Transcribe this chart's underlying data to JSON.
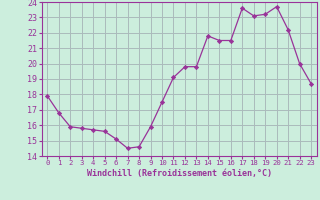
{
  "x": [
    0,
    1,
    2,
    3,
    4,
    5,
    6,
    7,
    8,
    9,
    10,
    11,
    12,
    13,
    14,
    15,
    16,
    17,
    18,
    19,
    20,
    21,
    22,
    23
  ],
  "y": [
    17.9,
    16.8,
    15.9,
    15.8,
    15.7,
    15.6,
    15.1,
    14.5,
    14.6,
    15.9,
    17.5,
    19.1,
    19.8,
    19.8,
    21.8,
    21.5,
    21.5,
    23.6,
    23.1,
    23.2,
    23.7,
    22.2,
    20.0,
    18.7
  ],
  "line_color": "#993399",
  "marker": "D",
  "marker_size": 2.2,
  "bg_color": "#cceedd",
  "grid_color": "#aabbbb",
  "xlabel": "Windchill (Refroidissement éolien,°C)",
  "xlim": [
    -0.5,
    23.5
  ],
  "ylim": [
    14,
    24
  ],
  "yticks": [
    14,
    15,
    16,
    17,
    18,
    19,
    20,
    21,
    22,
    23,
    24
  ],
  "xticks": [
    0,
    1,
    2,
    3,
    4,
    5,
    6,
    7,
    8,
    9,
    10,
    11,
    12,
    13,
    14,
    15,
    16,
    17,
    18,
    19,
    20,
    21,
    22,
    23
  ],
  "axis_color": "#993399",
  "tick_color": "#993399",
  "label_color": "#993399",
  "xlabel_fontsize": 6.0,
  "xtick_fontsize": 5.2,
  "ytick_fontsize": 6.0
}
